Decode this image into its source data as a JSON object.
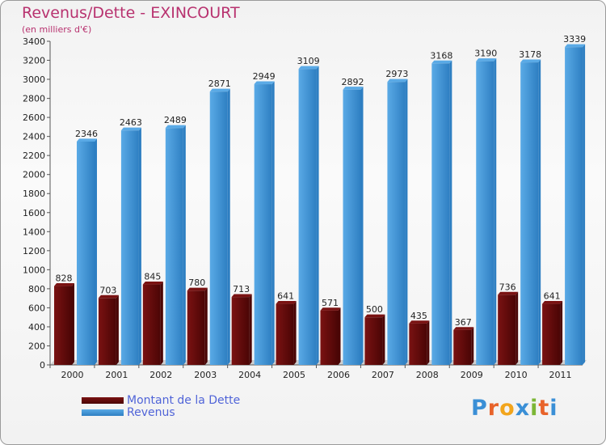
{
  "header": {
    "title": "Revenus/Dette - EXINCOURT",
    "subtitle": "(en milliers d'€)"
  },
  "legend": {
    "dette": "Montant de la Dette",
    "revenus": "Revenus"
  },
  "logo": {
    "text": "Proxiti",
    "letters": [
      "P",
      "r",
      "o",
      "x",
      "i",
      "t",
      "i"
    ],
    "letter_colors": [
      "#3a8fd6",
      "#e8632a",
      "#f2a51c",
      "#3a8fd6",
      "#7cb636",
      "#e8632a",
      "#3a8fd6"
    ]
  },
  "colors": {
    "dette": "#7a1212",
    "dette_dark": "#4a0505",
    "revenus": "#5aaae6",
    "revenus_dark": "#2e7fc2",
    "floor": "#555555"
  },
  "chart_data": {
    "type": "bar",
    "title": "Revenus/Dette - EXINCOURT",
    "ylabel": "(en milliers d'€)",
    "xlabel": "",
    "categories": [
      "2000",
      "2001",
      "2002",
      "2003",
      "2004",
      "2005",
      "2006",
      "2007",
      "2008",
      "2009",
      "2010",
      "2011"
    ],
    "series": [
      {
        "name": "Montant de la Dette",
        "values": [
          828,
          703,
          845,
          780,
          713,
          641,
          571,
          500,
          435,
          367,
          736,
          641
        ]
      },
      {
        "name": "Revenus",
        "values": [
          2346,
          2463,
          2489,
          2871,
          2949,
          3109,
          2892,
          2973,
          3168,
          3190,
          3178,
          3339
        ]
      }
    ],
    "ylim": [
      0,
      3400
    ],
    "yticks": [
      0,
      200,
      400,
      600,
      800,
      1000,
      1200,
      1400,
      1600,
      1800,
      2000,
      2200,
      2400,
      2600,
      2800,
      3000,
      3200,
      3400
    ],
    "grid": false,
    "legend_position": "bottom-left"
  }
}
